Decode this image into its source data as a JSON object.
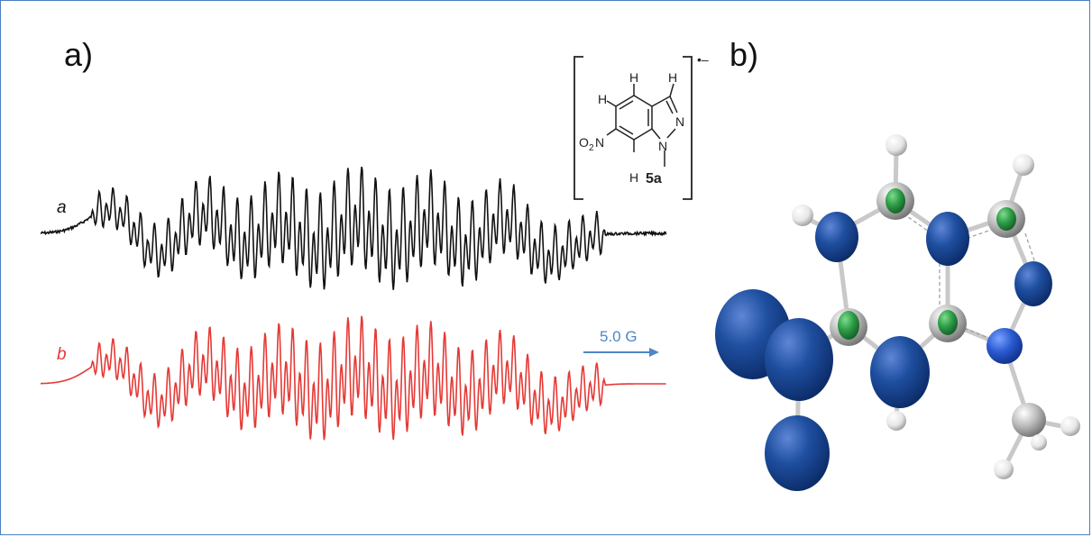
{
  "panels": {
    "a_label": "a)",
    "b_label": "b)"
  },
  "spectra": {
    "experimental_label": "a",
    "simulated_label": "b",
    "scale_label": "5.0 G",
    "colors": {
      "experimental": "#111111",
      "simulated": "#e53935",
      "scale_arrow": "#4f86c6"
    }
  },
  "structure": {
    "compound_label": "5a",
    "charge": "•–",
    "atoms": {
      "h_top": "H",
      "h_pyrazole": "H",
      "h_left": "H",
      "h_bottom": "H",
      "n_ring": "N",
      "n_methyl": "N",
      "nitro_o": "O",
      "nitro_sub": "2",
      "nitro_n": "N"
    }
  },
  "spin_density": {
    "colors": {
      "lobe": "#1f4fa0",
      "lobe_green": "#2e9e48",
      "carbon": "#b9b9b9",
      "hydrogen": "#eeeeee",
      "nitrogen": "#2a5ad0"
    }
  }
}
